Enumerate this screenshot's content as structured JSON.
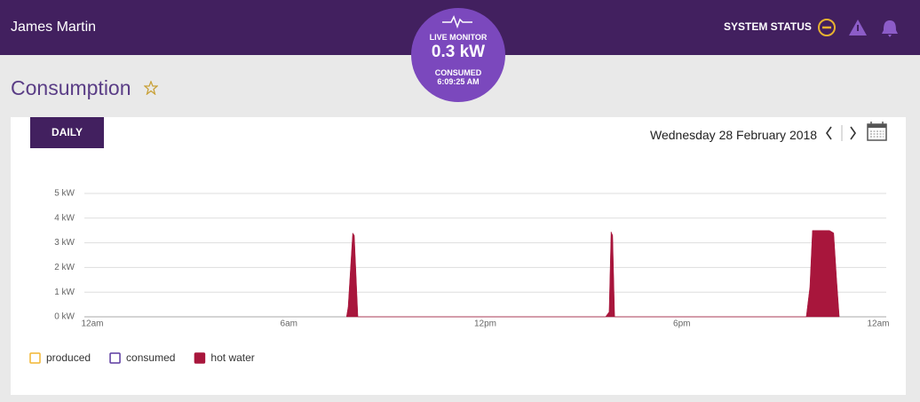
{
  "header": {
    "user": "James Martin",
    "status_label": "SYSTEM STATUS"
  },
  "live_monitor": {
    "label": "LIVE MONITOR",
    "value": "0.3 kW",
    "consumed_label": "CONSUMED",
    "consumed_time": "6:09:25 AM"
  },
  "page": {
    "title": "Consumption",
    "tab": "DAILY",
    "date": "Wednesday 28 February 2018"
  },
  "chart_data": {
    "type": "area",
    "xlim": [
      0,
      24
    ],
    "xticks": [
      {
        "value": 0,
        "label": "12am"
      },
      {
        "value": 6,
        "label": "6am"
      },
      {
        "value": 12,
        "label": "12pm"
      },
      {
        "value": 18,
        "label": "6pm"
      },
      {
        "value": 24,
        "label": "12am"
      }
    ],
    "ylim": [
      0,
      5
    ],
    "yticks": [
      {
        "value": 0,
        "label": "0 kW"
      },
      {
        "value": 1,
        "label": "1 kW"
      },
      {
        "value": 2,
        "label": "2 kW"
      },
      {
        "value": 3,
        "label": "3 kW"
      },
      {
        "value": 4,
        "label": "4 kW"
      },
      {
        "value": 5,
        "label": "5 kW"
      }
    ],
    "grid": true,
    "series": [
      {
        "name": "produced",
        "color": "#f2b632",
        "x": [],
        "values": []
      },
      {
        "name": "consumed",
        "color": "#5b3aa0",
        "x": [],
        "values": []
      },
      {
        "name": "hot water",
        "color": "#a8163c",
        "x": [
          7.76,
          7.81,
          7.95,
          8.0,
          8.11,
          15.67,
          15.78,
          15.84,
          15.89,
          15.95,
          21.8,
          21.91,
          21.99,
          22.51,
          22.64,
          22.73,
          22.81
        ],
        "values": [
          0,
          0.4,
          3.4,
          3.3,
          0,
          0,
          0.2,
          3.45,
          3.3,
          0,
          0,
          1.2,
          3.5,
          3.5,
          3.4,
          1.5,
          0
        ]
      }
    ]
  }
}
